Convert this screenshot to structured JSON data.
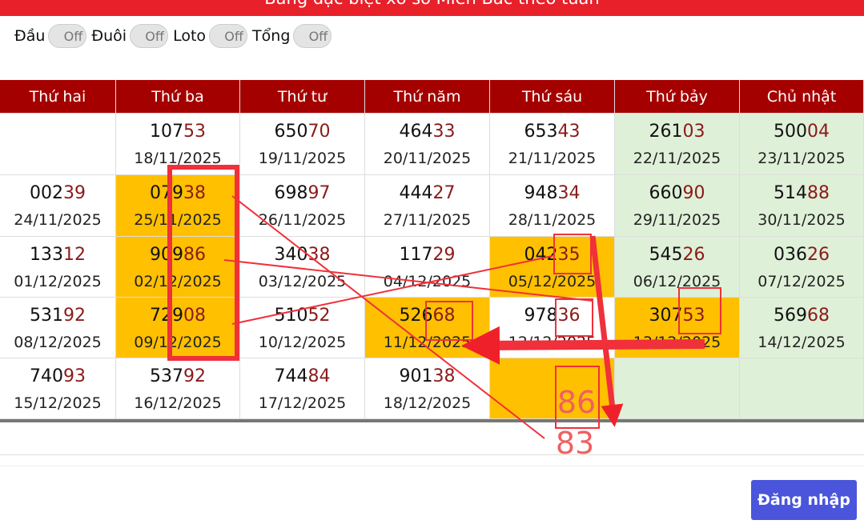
{
  "header": {
    "title": "Bảng đặc biệt xổ số Miền Bắc theo tuần"
  },
  "toggles": [
    {
      "label": "Đầu",
      "state": "Off"
    },
    {
      "label": "Đuôi",
      "state": "Off"
    },
    {
      "label": "Loto",
      "state": "Off"
    },
    {
      "label": "Tổng",
      "state": "Off"
    }
  ],
  "table": {
    "columns": [
      "Thứ hai",
      "Thứ ba",
      "Thứ tư",
      "Thứ năm",
      "Thứ sáu",
      "Thứ bảy",
      "Chủ nhật"
    ],
    "rows": [
      [
        {
          "color": "#ffffff"
        },
        {
          "head": "107",
          "tail": "53",
          "date": "18/11/2025",
          "color": "#ffffff"
        },
        {
          "head": "650",
          "tail": "70",
          "date": "19/11/2025",
          "color": "#ffffff"
        },
        {
          "head": "464",
          "tail": "33",
          "date": "20/11/2025",
          "color": "#ffffff"
        },
        {
          "head": "653",
          "tail": "43",
          "date": "21/11/2025",
          "color": "#ffffff"
        },
        {
          "head": "261",
          "tail": "03",
          "date": "22/11/2025",
          "color": "#dff0d8"
        },
        {
          "head": "500",
          "tail": "04",
          "date": "23/11/2025",
          "color": "#dff0d8"
        }
      ],
      [
        {
          "head": "002",
          "tail": "39",
          "date": "24/11/2025",
          "color": "#ffffff"
        },
        {
          "head": "079",
          "tail": "38",
          "date": "25/11/2025",
          "color": "#ffc000"
        },
        {
          "head": "698",
          "tail": "97",
          "date": "26/11/2025",
          "color": "#ffffff"
        },
        {
          "head": "444",
          "tail": "27",
          "date": "27/11/2025",
          "color": "#ffffff"
        },
        {
          "head": "948",
          "tail": "34",
          "date": "28/11/2025",
          "color": "#ffffff"
        },
        {
          "head": "660",
          "tail": "90",
          "date": "29/11/2025",
          "color": "#dff0d8"
        },
        {
          "head": "514",
          "tail": "88",
          "date": "30/11/2025",
          "color": "#dff0d8"
        }
      ],
      [
        {
          "head": "133",
          "tail": "12",
          "date": "01/12/2025",
          "color": "#ffffff"
        },
        {
          "head": "909",
          "tail": "86",
          "date": "02/12/2025",
          "color": "#ffc000"
        },
        {
          "head": "340",
          "tail": "38",
          "date": "03/12/2025",
          "color": "#ffffff"
        },
        {
          "head": "117",
          "tail": "29",
          "date": "04/12/2025",
          "color": "#ffffff"
        },
        {
          "head": "042",
          "tail": "35",
          "date": "05/12/2025",
          "color": "#ffc000"
        },
        {
          "head": "545",
          "tail": "26",
          "date": "06/12/2025",
          "color": "#dff0d8"
        },
        {
          "head": "036",
          "tail": "26",
          "date": "07/12/2025",
          "color": "#dff0d8"
        }
      ],
      [
        {
          "head": "531",
          "tail": "92",
          "date": "08/12/2025",
          "color": "#ffffff"
        },
        {
          "head": "729",
          "tail": "08",
          "date": "09/12/2025",
          "color": "#ffc000"
        },
        {
          "head": "510",
          "tail": "52",
          "date": "10/12/2025",
          "color": "#ffffff"
        },
        {
          "head": "526",
          "tail": "68",
          "date": "11/12/2025",
          "color": "#ffc000"
        },
        {
          "head": "978",
          "tail": "36",
          "date": "12/12/2025",
          "color": "#ffffff"
        },
        {
          "head": "307",
          "tail": "53",
          "date": "13/12/2025",
          "color": "#ffc000"
        },
        {
          "head": "569",
          "tail": "68",
          "date": "14/12/2025",
          "color": "#dff0d8"
        }
      ],
      [
        {
          "head": "740",
          "tail": "93",
          "date": "15/12/2025",
          "color": "#ffffff"
        },
        {
          "head": "537",
          "tail": "92",
          "date": "16/12/2025",
          "color": "#ffffff"
        },
        {
          "head": "744",
          "tail": "84",
          "date": "17/12/2025",
          "color": "#ffffff"
        },
        {
          "head": "901",
          "tail": "38",
          "date": "18/12/2025",
          "color": "#ffffff"
        },
        {
          "color": "#ffc000"
        },
        {
          "color": "#dff0d8"
        },
        {
          "color": "#dff0d8"
        }
      ]
    ]
  },
  "annotations": [
    "86",
    "83"
  ],
  "login_button": "Đăng nhập"
}
